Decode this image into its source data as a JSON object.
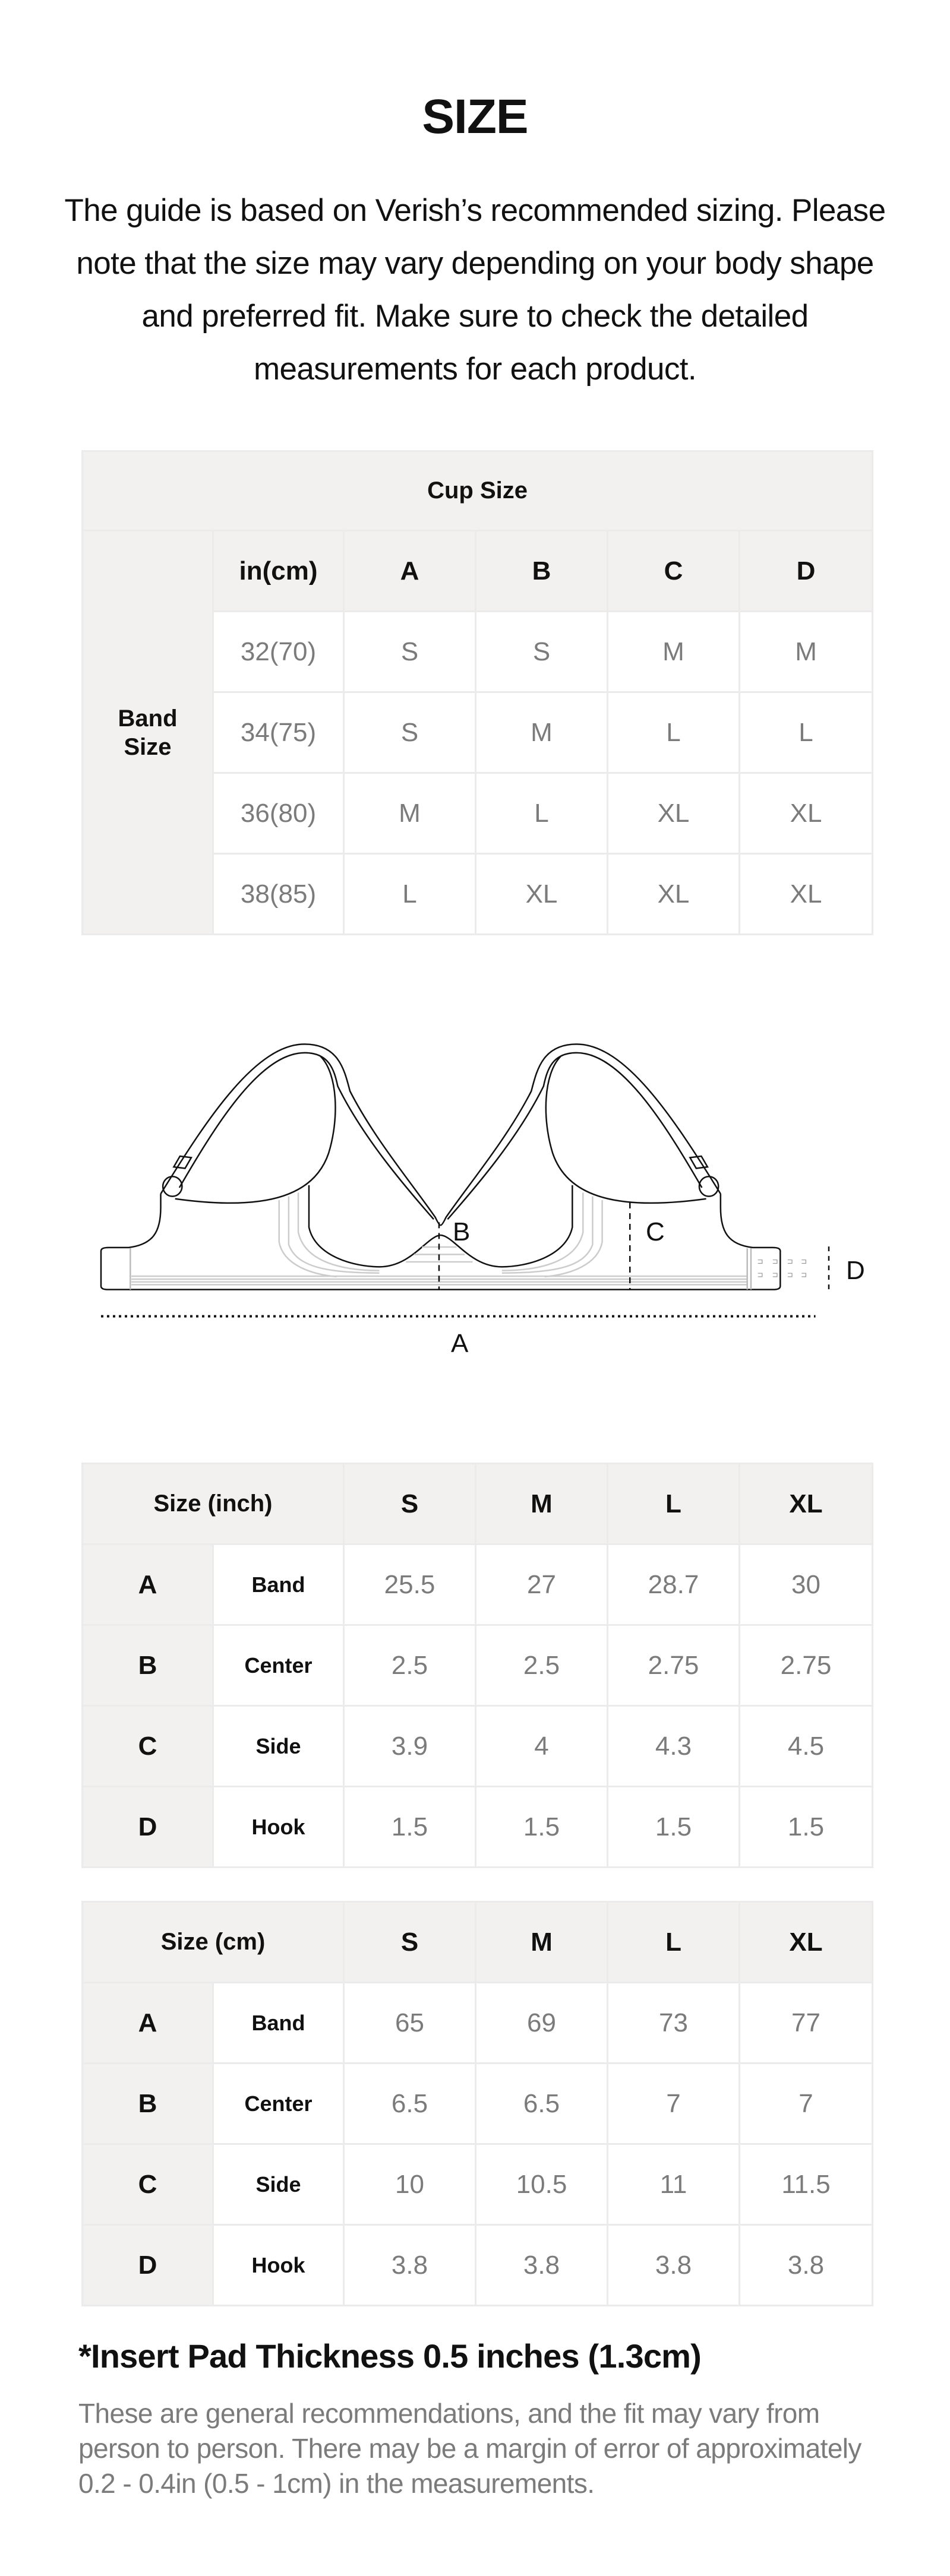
{
  "title": "SIZE",
  "intro": "The guide is based on Verish’s recommended sizing. Please note that the size may vary depending on your body shape and preferred fit. Make sure to check the detailed measurements for each product.",
  "cup_table": {
    "title": "Cup Size",
    "row_header": "Band Size",
    "unit_header": "in(cm)",
    "cups": [
      "A",
      "B",
      "C",
      "D"
    ],
    "rows": [
      {
        "band": "32(70)",
        "values": [
          "S",
          "S",
          "M",
          "M"
        ]
      },
      {
        "band": "34(75)",
        "values": [
          "S",
          "M",
          "L",
          "L"
        ]
      },
      {
        "band": "36(80)",
        "values": [
          "M",
          "L",
          "XL",
          "XL"
        ]
      },
      {
        "band": "38(85)",
        "values": [
          "L",
          "XL",
          "XL",
          "XL"
        ]
      }
    ]
  },
  "diagram": {
    "labels": {
      "a": "A",
      "b": "B",
      "c": "C",
      "d": "D"
    }
  },
  "inch_table": {
    "title": "Size (inch)",
    "sizes": [
      "S",
      "M",
      "L",
      "XL"
    ],
    "rows": [
      {
        "key": "A",
        "name": "Band",
        "values": [
          "25.5",
          "27",
          "28.7",
          "30"
        ]
      },
      {
        "key": "B",
        "name": "Center",
        "values": [
          "2.5",
          "2.5",
          "2.75",
          "2.75"
        ]
      },
      {
        "key": "C",
        "name": "Side",
        "values": [
          "3.9",
          "4",
          "4.3",
          "4.5"
        ]
      },
      {
        "key": "D",
        "name": "Hook",
        "values": [
          "1.5",
          "1.5",
          "1.5",
          "1.5"
        ]
      }
    ]
  },
  "cm_table": {
    "title": "Size (cm)",
    "sizes": [
      "S",
      "M",
      "L",
      "XL"
    ],
    "rows": [
      {
        "key": "A",
        "name": "Band",
        "values": [
          "65",
          "69",
          "73",
          "77"
        ]
      },
      {
        "key": "B",
        "name": "Center",
        "values": [
          "6.5",
          "6.5",
          "7",
          "7"
        ]
      },
      {
        "key": "C",
        "name": "Side",
        "values": [
          "10",
          "10.5",
          "11",
          "11.5"
        ]
      },
      {
        "key": "D",
        "name": "Hook",
        "values": [
          "3.8",
          "3.8",
          "3.8",
          "3.8"
        ]
      }
    ]
  },
  "note": {
    "title": "*Insert Pad Thickness 0.5 inches (1.3cm)",
    "body": "These are general recommendations, and the fit may vary from person to person. There may be a margin of error of approximately 0.2 - 0.4in (0.5 - 1cm) in the measurements."
  },
  "colors": {
    "header_bg": "#f2f1ef",
    "border": "#ebebeb",
    "value_text": "#7b7b7b",
    "text": "#111111"
  }
}
